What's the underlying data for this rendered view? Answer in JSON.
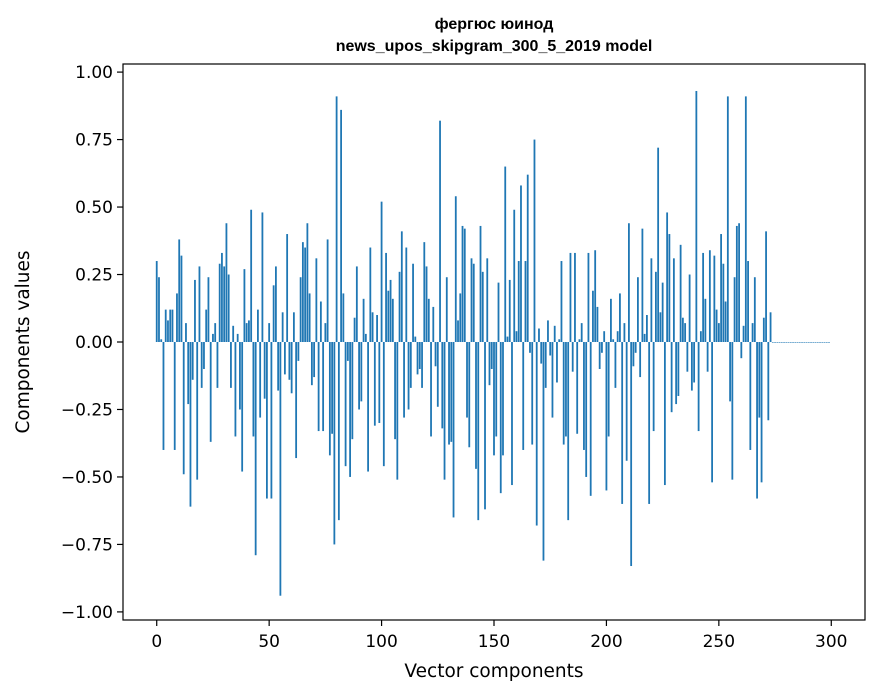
{
  "chart_data": {
    "type": "bar",
    "title_line1": "фергюс юинод",
    "title_line2": "news_upos_skipgram_300_5_2019 model",
    "xlabel": "Vector components",
    "ylabel": "Components values",
    "xlim": [
      -15,
      315
    ],
    "ylim": [
      -1.03,
      1.03
    ],
    "xticks": [
      0,
      50,
      100,
      150,
      200,
      250,
      300
    ],
    "xtick_labels": [
      "0",
      "50",
      "100",
      "150",
      "200",
      "250",
      "300"
    ],
    "yticks": [
      1.0,
      0.75,
      0.5,
      0.25,
      0.0,
      -0.25,
      -0.5,
      -0.75,
      -1.0
    ],
    "ytick_labels": [
      "1.00",
      "0.75",
      "0.50",
      "0.25",
      "0.00",
      "−0.25",
      "−0.50",
      "−0.75",
      "−1.00"
    ],
    "grid": false,
    "color": "#1f77b4",
    "x": [
      0,
      1,
      2,
      3,
      4,
      5,
      6,
      7,
      8,
      9,
      10,
      11,
      12,
      13,
      14,
      15,
      16,
      17,
      18,
      19,
      20,
      21,
      22,
      23,
      24,
      25,
      26,
      27,
      28,
      29,
      30,
      31,
      32,
      33,
      34,
      35,
      36,
      37,
      38,
      39,
      40,
      41,
      42,
      43,
      44,
      45,
      46,
      47,
      48,
      49,
      50,
      51,
      52,
      53,
      54,
      55,
      56,
      57,
      58,
      59,
      60,
      61,
      62,
      63,
      64,
      65,
      66,
      67,
      68,
      69,
      70,
      71,
      72,
      73,
      74,
      75,
      76,
      77,
      78,
      79,
      80,
      81,
      82,
      83,
      84,
      85,
      86,
      87,
      88,
      89,
      90,
      91,
      92,
      93,
      94,
      95,
      96,
      97,
      98,
      99,
      100,
      101,
      102,
      103,
      104,
      105,
      106,
      107,
      108,
      109,
      110,
      111,
      112,
      113,
      114,
      115,
      116,
      117,
      118,
      119,
      120,
      121,
      122,
      123,
      124,
      125,
      126,
      127,
      128,
      129,
      130,
      131,
      132,
      133,
      134,
      135,
      136,
      137,
      138,
      139,
      140,
      141,
      142,
      143,
      144,
      145,
      146,
      147,
      148,
      149,
      150,
      151,
      152,
      153,
      154,
      155,
      156,
      157,
      158,
      159,
      160,
      161,
      162,
      163,
      164,
      165,
      166,
      167,
      168,
      169,
      170,
      171,
      172,
      173,
      174,
      175,
      176,
      177,
      178,
      179,
      180,
      181,
      182,
      183,
      184,
      185,
      186,
      187,
      188,
      189,
      190,
      191,
      192,
      193,
      194,
      195,
      196,
      197,
      198,
      199,
      200,
      201,
      202,
      203,
      204,
      205,
      206,
      207,
      208,
      209,
      210,
      211,
      212,
      213,
      214,
      215,
      216,
      217,
      218,
      219,
      220,
      221,
      222,
      223,
      224,
      225,
      226,
      227,
      228,
      229,
      230,
      231,
      232,
      233,
      234,
      235,
      236,
      237,
      238,
      239,
      240,
      241,
      242,
      243,
      244,
      245,
      246,
      247,
      248,
      249,
      250,
      251,
      252,
      253,
      254,
      255,
      256,
      257,
      258,
      259,
      260,
      261,
      262,
      263,
      264,
      265,
      266,
      267,
      268,
      269,
      270,
      271,
      272,
      273,
      274,
      275,
      276,
      277,
      278,
      279,
      280,
      281,
      282,
      283,
      284,
      285,
      286,
      287,
      288,
      289,
      290,
      291,
      292,
      293,
      294,
      295,
      296,
      297,
      298,
      299
    ],
    "values": [
      0.3,
      0.24,
      0.01,
      -0.4,
      0.12,
      0.08,
      0.12,
      0.12,
      -0.4,
      0.18,
      0.38,
      0.32,
      -0.49,
      0.07,
      -0.23,
      -0.61,
      -0.14,
      0.23,
      -0.51,
      0.28,
      -0.17,
      -0.1,
      0.12,
      0.24,
      -0.37,
      0.03,
      0.07,
      -0.17,
      0.29,
      0.33,
      0.28,
      0.44,
      0.25,
      -0.17,
      0.06,
      -0.35,
      0.03,
      -0.25,
      -0.48,
      0.27,
      0.07,
      0.08,
      0.49,
      -0.35,
      -0.79,
      0.12,
      -0.28,
      0.48,
      -0.21,
      -0.58,
      0.07,
      -0.58,
      0.21,
      0.28,
      -0.18,
      -0.94,
      0.11,
      -0.12,
      0.4,
      -0.14,
      -0.19,
      0.11,
      -0.43,
      -0.07,
      0.24,
      0.37,
      0.35,
      0.44,
      0.18,
      -0.16,
      -0.13,
      0.31,
      -0.33,
      0.15,
      -0.33,
      0.07,
      0.38,
      -0.42,
      -0.34,
      -0.75,
      0.91,
      -0.66,
      0.86,
      0.18,
      -0.46,
      -0.07,
      -0.5,
      -0.36,
      0.09,
      0.28,
      -0.25,
      -0.22,
      0.16,
      0.03,
      -0.48,
      0.35,
      0.11,
      -0.31,
      0.1,
      -0.3,
      0.52,
      -0.46,
      0.33,
      0.19,
      0.23,
      0.16,
      -0.36,
      -0.51,
      0.26,
      0.41,
      -0.28,
      0.35,
      -0.25,
      -0.17,
      0.29,
      0.02,
      -0.12,
      -0.1,
      -0.17,
      0.37,
      0.28,
      0.16,
      -0.35,
      0.13,
      -0.09,
      -0.24,
      0.82,
      -0.32,
      -0.51,
      0.24,
      -0.38,
      -0.37,
      -0.65,
      0.54,
      0.08,
      0.18,
      0.43,
      0.42,
      -0.28,
      -0.39,
      0.31,
      0.29,
      -0.47,
      -0.66,
      0.43,
      0.26,
      -0.62,
      0.31,
      -0.16,
      -0.1,
      -0.42,
      -0.35,
      0.22,
      -0.56,
      -0.42,
      0.65,
      0.02,
      0.23,
      -0.53,
      0.49,
      0.04,
      0.3,
      0.58,
      -0.4,
      0.3,
      0.62,
      -0.04,
      -0.38,
      0.75,
      -0.68,
      0.05,
      -0.08,
      -0.81,
      -0.17,
      0.08,
      -0.05,
      -0.28,
      0.06,
      -0.15,
      0.01,
      0.3,
      -0.38,
      -0.35,
      -0.66,
      0.33,
      -0.11,
      0.33,
      -0.34,
      0.01,
      0.07,
      -0.4,
      -0.5,
      0.33,
      -0.57,
      0.19,
      0.34,
      0.13,
      -0.1,
      -0.04,
      0.04,
      -0.55,
      -0.35,
      0.16,
      0.01,
      -0.17,
      0.04,
      0.18,
      -0.6,
      0.07,
      -0.44,
      0.44,
      -0.83,
      -0.09,
      -0.04,
      0.24,
      -0.13,
      0.42,
      0.03,
      0.1,
      -0.6,
      0.31,
      -0.33,
      0.26,
      0.72,
      0.11,
      0.22,
      -0.53,
      0.48,
      0.4,
      -0.26,
      0.31,
      -0.23,
      -0.2,
      0.36,
      0.09,
      0.07,
      -0.11,
      0.25,
      -0.18,
      -0.15,
      0.93,
      -0.33,
      0.04,
      0.33,
      0.16,
      -0.11,
      0.34,
      -0.52,
      0.32,
      0.12,
      0.07,
      0.4,
      0.29,
      0.15,
      0.91,
      -0.22,
      -0.51,
      0.24,
      0.43,
      0.44,
      -0.06,
      0.06,
      0.91,
      0.3,
      -0.4,
      0.07,
      0.24,
      -0.58,
      -0.28,
      -0.52,
      0.09,
      0.41,
      -0.29,
      0.11,
      0.0,
      0.0,
      0.0,
      0.0,
      0.0,
      0.0,
      0.0,
      0.0,
      0.0,
      0.0,
      0.0,
      0.0,
      0.0,
      0.0,
      0.0,
      0.0,
      0.0,
      0.0,
      0.0,
      0.0,
      0.0,
      0.0,
      0.0,
      0.0,
      0.0,
      0.0
    ]
  }
}
